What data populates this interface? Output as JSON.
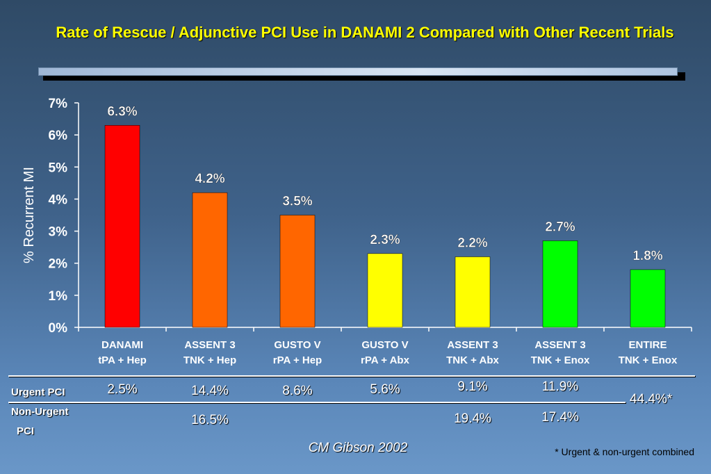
{
  "title": "Rate of Rescue / Adjunctive PCI Use in DANAMI 2 Compared with Other Recent Trials",
  "chart_data": {
    "type": "bar",
    "ylabel": "% Recurrent MI",
    "ylim": [
      0,
      7
    ],
    "yticks": [
      "0%",
      "1%",
      "2%",
      "3%",
      "4%",
      "5%",
      "6%",
      "7%"
    ],
    "categories": [
      {
        "line1": "DANAMI",
        "line2": "tPA + Hep"
      },
      {
        "line1": "ASSENT 3",
        "line2": "TNK + Hep"
      },
      {
        "line1": "GUSTO V",
        "line2": "rPA + Hep"
      },
      {
        "line1": "GUSTO V",
        "line2": "rPA + Abx"
      },
      {
        "line1": "ASSENT 3",
        "line2": "TNK + Abx"
      },
      {
        "line1": "ASSENT 3",
        "line2": "TNK + Enox"
      },
      {
        "line1": "ENTIRE",
        "line2": "TNK + Enox"
      }
    ],
    "values": [
      6.3,
      4.2,
      3.5,
      2.3,
      2.2,
      2.7,
      1.8
    ],
    "data_labels": [
      "6.3%",
      "4.2%",
      "3.5%",
      "2.3%",
      "2.2%",
      "2.7%",
      "1.8%"
    ],
    "colors": [
      "#ff0000",
      "#ff6600",
      "#ff6600",
      "#ffff00",
      "#ffff00",
      "#00ff00",
      "#00ff00"
    ]
  },
  "table": {
    "urgent_label": "Urgent PCI",
    "nonurgent_label_1": "Non-Urgent",
    "nonurgent_label_2": "PCI",
    "urgent": [
      "2.5%",
      "14.4%",
      "8.6%",
      "5.6%",
      "9.1%",
      "11.9%"
    ],
    "nonurgent": [
      "",
      "16.5%",
      "",
      "",
      "19.4%",
      "17.4%"
    ],
    "combined": "44.4%*"
  },
  "citation": "CM Gibson 2002",
  "footnote": "* Urgent & non-urgent combined"
}
